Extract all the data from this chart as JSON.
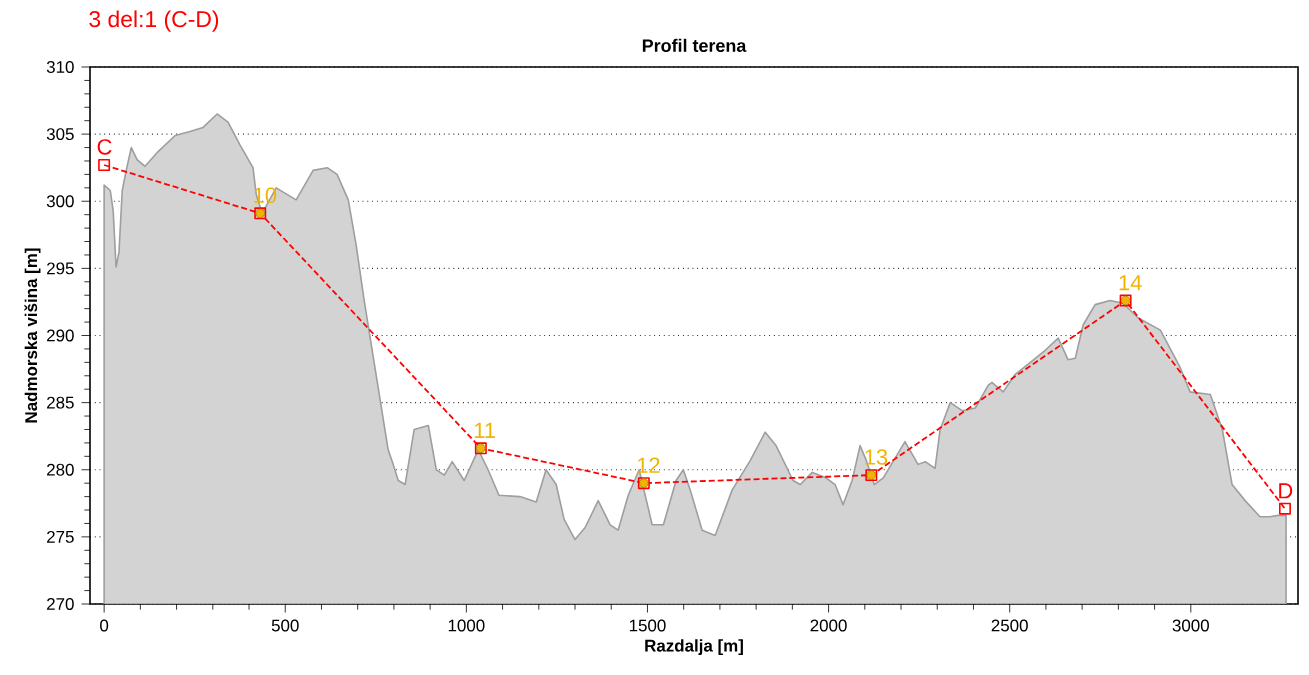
{
  "chart_data": {
    "type": "area",
    "title": "Profil terena",
    "subtitle": "3 del:1 (C-D)",
    "xlabel": "Razdalja [m]",
    "ylabel": "Nadmorska višina [m]",
    "xlim": [
      -39,
      3296
    ],
    "ylim": [
      270,
      310
    ],
    "xticks": [
      0,
      500,
      1000,
      1500,
      2000,
      2500,
      3000
    ],
    "yticks": [
      270,
      275,
      280,
      285,
      290,
      295,
      300,
      305,
      310
    ],
    "grid": "y",
    "series": [
      {
        "color": "#d3d3d3",
        "x": [
          0,
          17,
          25,
          33,
          41,
          50,
          61,
          75,
          91,
          113,
          149,
          196,
          237,
          273,
          312,
          342,
          375,
          411,
          420,
          436,
          475,
          530,
          577,
          616,
          643,
          674,
          696,
          718,
          740,
          762,
          784,
          798,
          812,
          831,
          856,
          895,
          917,
          939,
          961,
          994,
          1033,
          1060,
          1090,
          1148,
          1193,
          1220,
          1248,
          1270,
          1300,
          1328,
          1364,
          1397,
          1419,
          1447,
          1477,
          1513,
          1544,
          1579,
          1599,
          1618,
          1651,
          1687,
          1734,
          1784,
          1825,
          1855,
          1902,
          1922,
          1955,
          1993,
          2018,
          2040,
          2065,
          2087,
          2104,
          2126,
          2151,
          2211,
          2247,
          2267,
          2294,
          2308,
          2336,
          2369,
          2405,
          2441,
          2451,
          2482,
          2515,
          2557,
          2598,
          2634,
          2661,
          2681,
          2703,
          2736,
          2777,
          2813,
          2855,
          2916,
          2971,
          2998,
          3054,
          3087,
          3114,
          3150,
          3191,
          3219,
          3241,
          3263
        ],
        "values": [
          301.2,
          300.8,
          299.3,
          295.1,
          296.2,
          300.8,
          302.3,
          304.0,
          303.1,
          302.6,
          303.7,
          304.9,
          305.2,
          305.5,
          306.5,
          305.9,
          304.2,
          302.5,
          300.5,
          299.1,
          301.0,
          300.1,
          302.3,
          302.5,
          302.0,
          300.1,
          296.7,
          292.6,
          288.9,
          285.2,
          281.5,
          280.4,
          279.2,
          278.9,
          283.0,
          283.3,
          280.0,
          279.6,
          280.6,
          279.2,
          281.5,
          280.0,
          278.1,
          278.0,
          277.6,
          280.0,
          278.9,
          276.3,
          274.8,
          275.7,
          277.7,
          275.9,
          275.5,
          278.1,
          280.0,
          275.9,
          275.9,
          279.2,
          280.0,
          278.5,
          275.5,
          275.1,
          278.5,
          280.7,
          282.8,
          281.8,
          279.2,
          278.9,
          279.8,
          279.4,
          278.9,
          277.4,
          279.2,
          281.8,
          280.7,
          278.9,
          279.4,
          282.1,
          280.4,
          280.6,
          280.1,
          283.0,
          285.0,
          284.4,
          284.6,
          286.3,
          286.5,
          285.8,
          287.1,
          288.0,
          288.9,
          289.8,
          288.2,
          288.3,
          290.8,
          292.3,
          292.6,
          292.4,
          291.3,
          290.4,
          287.6,
          285.8,
          285.6,
          283.0,
          278.9,
          277.7,
          276.5,
          276.5,
          276.6,
          276.6
        ]
      },
      {
        "type": "line",
        "color": "#ff0000",
        "line_style": "dashed",
        "marker": "square",
        "x": [
          0,
          431,
          1040,
          1490,
          2118,
          2820,
          3260
        ],
        "values": [
          302.7,
          299.1,
          281.6,
          279.0,
          279.6,
          292.6,
          277.1
        ]
      },
      {
        "type": "scatter",
        "color": "#f0b400",
        "marker": "circle",
        "x": [
          431,
          1040,
          1490,
          2118,
          2820
        ],
        "values": [
          299.1,
          281.6,
          279.0,
          279.6,
          292.6
        ]
      }
    ],
    "annotations": [
      {
        "text": "C",
        "x": 0,
        "y": 302.7
      },
      {
        "text": "10",
        "x": 431,
        "y": 299.1
      },
      {
        "text": "11",
        "x": 1040,
        "y": 281.6
      },
      {
        "text": "12",
        "x": 1490,
        "y": 279.0
      },
      {
        "text": "13",
        "x": 2118,
        "y": 279.6
      },
      {
        "text": "14",
        "x": 2820,
        "y": 292.6
      },
      {
        "text": "D",
        "x": 3260,
        "y": 277.1
      }
    ]
  }
}
